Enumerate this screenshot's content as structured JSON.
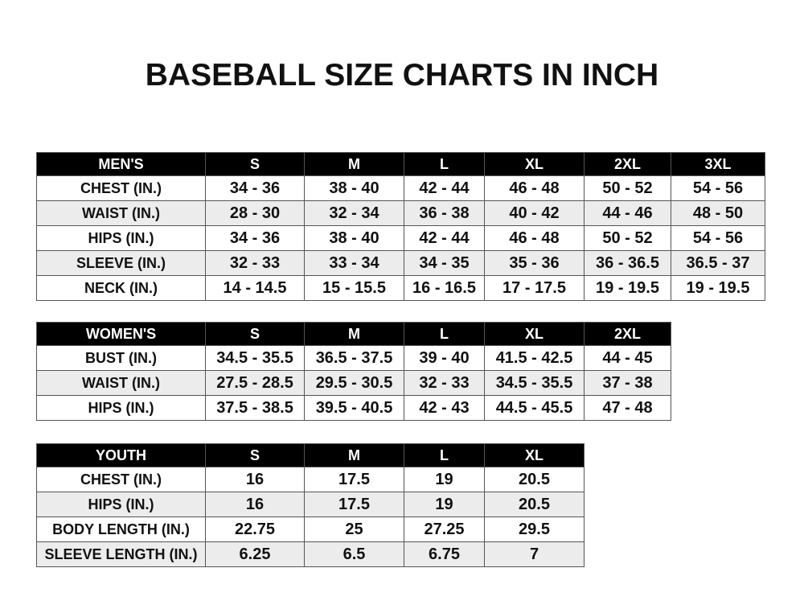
{
  "title": "BASEBALL SIZE CHARTS IN INCH",
  "mens": {
    "headers": [
      "MEN'S",
      "S",
      "M",
      "L",
      "XL",
      "2XL",
      "3XL"
    ],
    "rows": [
      [
        "CHEST (IN.)",
        "34 - 36",
        "38 - 40",
        "42 - 44",
        "46 - 48",
        "50 - 52",
        "54 - 56"
      ],
      [
        "WAIST (IN.)",
        "28 - 30",
        "32 - 34",
        "36 - 38",
        "40 - 42",
        "44 - 46",
        "48 - 50"
      ],
      [
        "HIPS (IN.)",
        "34 - 36",
        "38 - 40",
        "42 - 44",
        "46 - 48",
        "50 - 52",
        "54 - 56"
      ],
      [
        "SLEEVE (IN.)",
        "32 - 33",
        "33 - 34",
        "34 - 35",
        "35 - 36",
        "36 - 36.5",
        "36.5 - 37"
      ],
      [
        "NECK (IN.)",
        "14 - 14.5",
        "15 - 15.5",
        "16 - 16.5",
        "17 - 17.5",
        "19 - 19.5",
        "19 - 19.5"
      ]
    ]
  },
  "womens": {
    "headers": [
      "WOMEN'S",
      "S",
      "M",
      "L",
      "XL",
      "2XL"
    ],
    "rows": [
      [
        "BUST (IN.)",
        "34.5 - 35.5",
        "36.5 - 37.5",
        "39 - 40",
        "41.5 - 42.5",
        "44 - 45"
      ],
      [
        "WAIST (IN.)",
        "27.5 - 28.5",
        "29.5 - 30.5",
        "32 - 33",
        "34.5 - 35.5",
        "37 - 38"
      ],
      [
        "HIPS (IN.)",
        "37.5 - 38.5",
        "39.5 - 40.5",
        "42 - 43",
        "44.5 - 45.5",
        "47 - 48"
      ]
    ]
  },
  "youth": {
    "headers": [
      "YOUTH",
      "S",
      "M",
      "L",
      "XL"
    ],
    "rows": [
      [
        "CHEST (IN.)",
        "16",
        "17.5",
        "19",
        "20.5"
      ],
      [
        "HIPS (IN.)",
        "16",
        "17.5",
        "19",
        "20.5"
      ],
      [
        "BODY LENGTH (IN.)",
        "22.75",
        "25",
        "27.25",
        "29.5"
      ],
      [
        "SLEEVE LENGTH (IN.)",
        "6.25",
        "6.5",
        "6.75",
        "7"
      ]
    ]
  }
}
